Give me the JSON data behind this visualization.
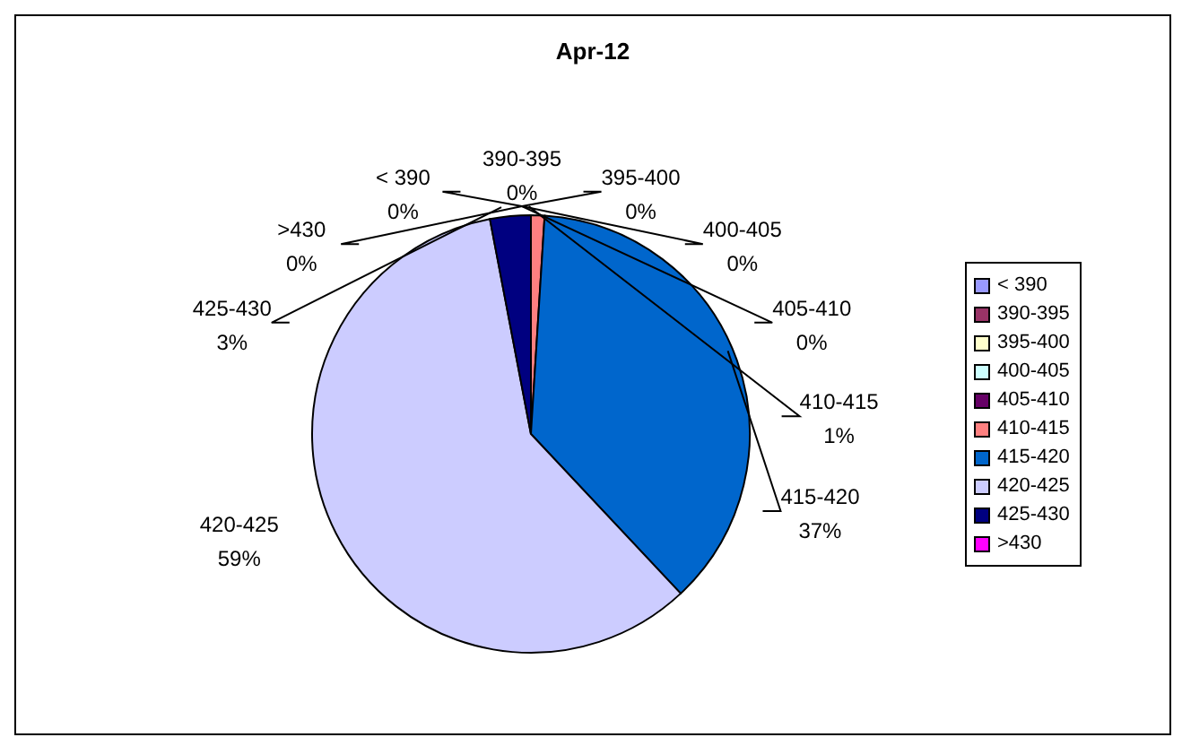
{
  "chart_data": {
    "type": "pie",
    "title": "Apr-12",
    "categories": [
      "< 390",
      "390-395",
      "395-400",
      "400-405",
      "405-410",
      "410-415",
      "415-420",
      "420-425",
      "425-430",
      ">430"
    ],
    "values": [
      0,
      0,
      0,
      0,
      0,
      1,
      37,
      59,
      3,
      0
    ],
    "value_labels": [
      "0%",
      "0%",
      "0%",
      "0%",
      "0%",
      "1%",
      "37%",
      "59%",
      "3%",
      "0%"
    ],
    "colors": [
      "#9999ff",
      "#993366",
      "#ffffcc",
      "#ccffff",
      "#660066",
      "#ff8080",
      "#0066cc",
      "#ccccff",
      "#000080",
      "#ff00ff"
    ],
    "legend": "right"
  }
}
